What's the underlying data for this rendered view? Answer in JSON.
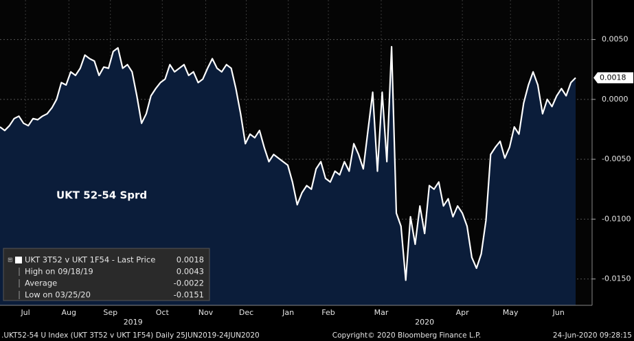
{
  "chart_data": {
    "type": "area",
    "annotation": "UKT 52-54 Sprd",
    "series": [
      {
        "name": "UKT 3T52 v UKT 1F54 - Last Price",
        "color": "#ffffff",
        "fill": "#0b1d3a",
        "values": [
          -0.0023,
          -0.0026,
          -0.0022,
          -0.0016,
          -0.0014,
          -0.002,
          -0.0022,
          -0.0016,
          -0.0017,
          -0.0014,
          -0.0012,
          -0.0007,
          0,
          0.0014,
          0.0012,
          0.0023,
          0.002,
          0.0026,
          0.0037,
          0.0034,
          0.0032,
          0.002,
          0.0027,
          0.0026,
          0.004,
          0.0043,
          0.0026,
          0.0029,
          0.0023,
          0.0003,
          -0.002,
          -0.0012,
          0.0003,
          0.0009,
          0.0014,
          0.0017,
          0.0029,
          0.0023,
          0.0026,
          0.0029,
          0.002,
          0.0023,
          0.0014,
          0.0017,
          0.0026,
          0.0034,
          0.0026,
          0.0023,
          0.0029,
          0.0026,
          0.0009,
          -0.0012,
          -0.0037,
          -0.0029,
          -0.0032,
          -0.0026,
          -0.004,
          -0.0052,
          -0.0046,
          -0.0049,
          -0.0052,
          -0.0055,
          -0.0069,
          -0.0088,
          -0.0078,
          -0.0072,
          -0.0075,
          -0.0058,
          -0.0052,
          -0.0066,
          -0.0069,
          -0.006,
          -0.0063,
          -0.0052,
          -0.006,
          -0.0037,
          -0.0046,
          -0.0058,
          -0.0026,
          0.0006,
          -0.006,
          0.0006,
          -0.0052,
          0.0044,
          -0.0095,
          -0.0106,
          -0.0151,
          -0.0098,
          -0.0121,
          -0.0089,
          -0.0112,
          -0.0072,
          -0.0075,
          -0.0069,
          -0.0089,
          -0.0083,
          -0.0098,
          -0.0089,
          -0.0095,
          -0.0106,
          -0.0132,
          -0.0141,
          -0.0129,
          -0.0101,
          -0.0046,
          -0.004,
          -0.0035,
          -0.0049,
          -0.004,
          -0.0023,
          -0.0029,
          -0.0003,
          0.0012,
          0.0023,
          0.0012,
          -0.0012,
          0,
          -0.0006,
          0.0003,
          0.0009,
          0.0003,
          0.0014,
          0.0018
        ]
      }
    ],
    "last_price": {
      "value": 0.0018,
      "label": "0.0018"
    },
    "legend": [
      {
        "label": "UKT 3T52 v UKT 1F54 - Last Price",
        "value": "0.0018"
      },
      {
        "label": "High on 09/18/19",
        "value": "0.0043"
      },
      {
        "label": "Average",
        "value": "-0.0022"
      },
      {
        "label": "Low on 03/25/20",
        "value": "-0.0151"
      }
    ],
    "xlim": [
      0,
      125.5
    ],
    "xticks": [
      {
        "value": 5.4,
        "label": "Jul"
      },
      {
        "value": 14.6,
        "label": "Aug"
      },
      {
        "value": 23.4,
        "label": "Sep"
      },
      {
        "value": 34.4,
        "label": "Oct"
      },
      {
        "value": 43.6,
        "label": "Nov"
      },
      {
        "value": 52.2,
        "label": "Dec"
      },
      {
        "value": 61.1,
        "label": "Jan"
      },
      {
        "value": 69.6,
        "label": "Feb"
      },
      {
        "value": 80.8,
        "label": "Mar"
      },
      {
        "value": 98,
        "label": "Apr"
      },
      {
        "value": 108.2,
        "label": "May"
      },
      {
        "value": 118.4,
        "label": "Jun"
      }
    ],
    "year_labels": [
      {
        "value": 28.2,
        "label": "2019"
      },
      {
        "value": 90,
        "label": "2020"
      }
    ],
    "ylim": [
      -0.0172,
      0.0083
    ],
    "yticks": [
      {
        "value": 0.005,
        "label": "0.0050"
      },
      {
        "value": 0,
        "label": "0.0000"
      },
      {
        "value": -0.005,
        "label": "-0.0050"
      },
      {
        "value": -0.01,
        "label": "-0.0100"
      },
      {
        "value": -0.015,
        "label": "-0.0150"
      }
    ],
    "grid": true,
    "footer": {
      "left": ".UKT52-54 U Index (UKT 3T52 v UKT 1F54)  Daily 25JUN2019-24JUN2020",
      "center": "Copyright© 2020 Bloomberg Finance L.P.",
      "right": "24-Jun-2020 09:28:15"
    }
  }
}
